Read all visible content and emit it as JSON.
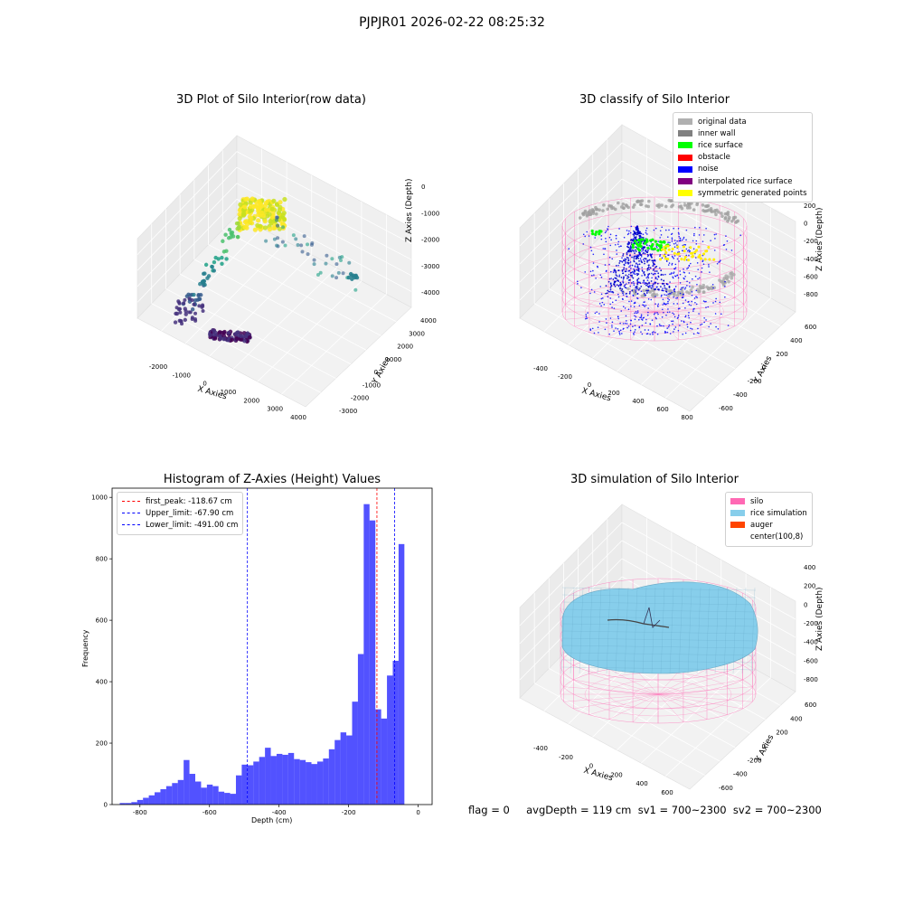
{
  "figure": {
    "suptitle": "PJPJR01 2026-02-22 08:25:32"
  },
  "status": {
    "text": "flag = 0     avgDepth = 119 cm  sv1 = 700~2300  sv2 = 700~2300"
  },
  "chart_data": [
    {
      "type": "scatter",
      "title": "3D Plot of Silo Interior(row data)",
      "xlabel": "X Axies",
      "ylabel": "Y Axies",
      "zlabel": "Z Axies (Depth)",
      "x_ticks": [
        "-2000",
        "-1000",
        "0",
        "1000",
        "2000",
        "3000",
        "4000"
      ],
      "y_ticks": [
        "-3000",
        "-2000",
        "-1000",
        "0",
        "1000",
        "2000",
        "3000",
        "4000"
      ],
      "z_ticks": [
        "0",
        "-1000",
        "-2000",
        "-3000",
        "-4000"
      ],
      "xlim": [
        -2500,
        4000
      ],
      "ylim": [
        -3000,
        4000
      ],
      "zlim": [
        -4500,
        0
      ],
      "colormap": "viridis",
      "grid": true
    },
    {
      "type": "scatter",
      "title": "3D classify of Silo Interior",
      "xlabel": "X Axies",
      "ylabel": "Y Axies",
      "zlabel": "Z Axies (Depth)",
      "x_ticks": [
        "-400",
        "-200",
        "0",
        "200",
        "400",
        "600",
        "800"
      ],
      "y_ticks": [
        "-600",
        "-400",
        "-200",
        "0",
        "200",
        "400",
        "600"
      ],
      "z_ticks": [
        "200",
        "0",
        "-200",
        "-400",
        "-600",
        "-800"
      ],
      "xlim": [
        -500,
        800
      ],
      "ylim": [
        -600,
        600
      ],
      "zlim": [
        -900,
        300
      ],
      "legend_position": "top-right",
      "grid": true,
      "series": [
        {
          "name": "original data",
          "color": "#b0b0b0"
        },
        {
          "name": "inner wall",
          "color": "#808080"
        },
        {
          "name": "rice surface",
          "color": "#00ff00"
        },
        {
          "name": "obstacle",
          "color": "#ff0000"
        },
        {
          "name": "noise",
          "color": "#0000ff"
        },
        {
          "name": "interpolated rice surface",
          "color": "#800080"
        },
        {
          "name": "symmetric generated points",
          "color": "#ffff00"
        }
      ]
    },
    {
      "type": "bar",
      "title": "Histogram of Z-Axies (Height) Values",
      "xlabel": "Depth (cm)",
      "ylabel": "Frequency",
      "xlim": [
        -880,
        40
      ],
      "ylim": [
        0,
        1030
      ],
      "x_ticks": [
        -800,
        -600,
        -400,
        -200,
        0
      ],
      "y_ticks": [
        0,
        200,
        400,
        600,
        800,
        1000
      ],
      "bin_width": 16.7,
      "bin_start": -858,
      "color": "#0000ff",
      "values": [
        5,
        5,
        8,
        15,
        22,
        30,
        40,
        50,
        60,
        70,
        80,
        145,
        100,
        75,
        55,
        65,
        60,
        42,
        38,
        35,
        95,
        130,
        128,
        140,
        155,
        185,
        158,
        165,
        162,
        168,
        148,
        145,
        138,
        132,
        140,
        150,
        180,
        210,
        235,
        225,
        335,
        490,
        978,
        925,
        310,
        280,
        420,
        468,
        848
      ],
      "legend_position": "top-left",
      "lines": [
        {
          "name": "first_peak: -118.67 cm",
          "value": -118.67,
          "color": "#ff0000"
        },
        {
          "name": "Upper_limit: -67.90 cm",
          "value": -67.9,
          "color": "#0000ff"
        },
        {
          "name": "Lower_limit: -491.00 cm",
          "value": -491.0,
          "color": "#0000ff"
        }
      ]
    },
    {
      "type": "scatter",
      "title": "3D simulation of Silo Interior",
      "xlabel": "X Axies",
      "ylabel": "Y Axies",
      "zlabel": "Z Axies (Depth)",
      "x_ticks": [
        "-400",
        "-200",
        "0",
        "200",
        "400",
        "600"
      ],
      "y_ticks": [
        "-600",
        "-400",
        "-200",
        "0",
        "200",
        "400",
        "600"
      ],
      "z_ticks": [
        "400",
        "200",
        "0",
        "-200",
        "-400",
        "-600",
        "-800"
      ],
      "xlim": [
        -500,
        700
      ],
      "ylim": [
        -600,
        600
      ],
      "zlim": [
        -900,
        450
      ],
      "legend_position": "top-right",
      "grid": true,
      "series": [
        {
          "name": "silo",
          "color": "#ff69b4"
        },
        {
          "name": "rice simulation",
          "color": "#87ceeb"
        },
        {
          "name": "auger",
          "color": "#ff4500"
        },
        {
          "name": "center(100,8)",
          "color": "#ffffff"
        }
      ]
    }
  ]
}
